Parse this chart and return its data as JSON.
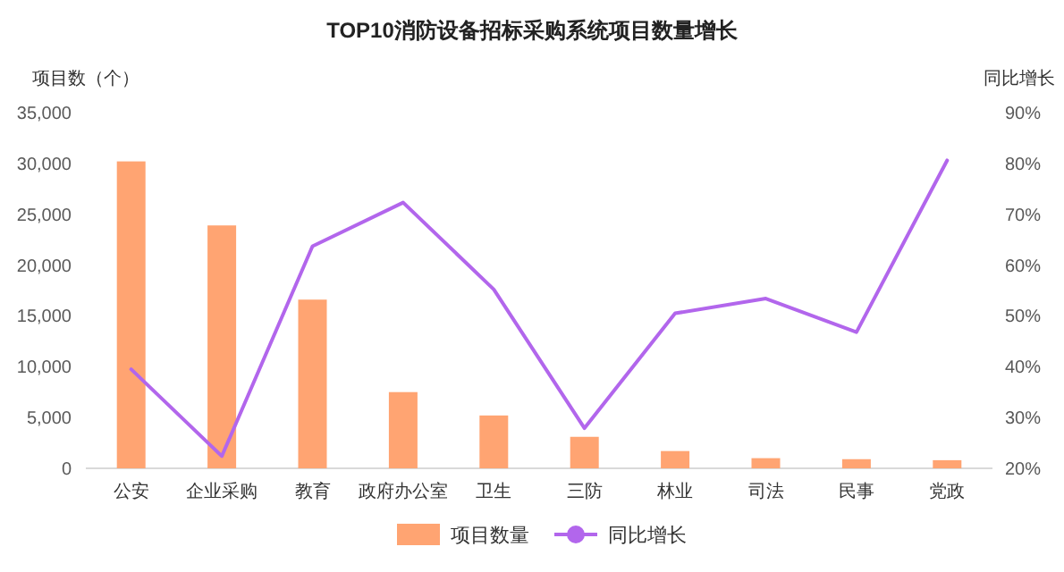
{
  "chart_data": {
    "type": "bar",
    "title": "TOP10消防设备招标采购系统项目数量增长",
    "ylabel": "项目数（个）",
    "y2label": "同比增长",
    "categories": [
      "公安",
      "企业采购",
      "教育",
      "政府办公室",
      "卫生",
      "三防",
      "林业",
      "司法",
      "民事",
      "党政"
    ],
    "series": [
      {
        "name": "项目数量",
        "color": "#ffa472",
        "values": [
          30200,
          23900,
          16600,
          7500,
          5200,
          3100,
          1700,
          1000,
          900,
          800
        ]
      },
      {
        "name": "同比增长",
        "type": "line",
        "axis": "y2",
        "color": "#b266ec",
        "values": [
          39.5,
          22.4,
          63.7,
          72.3,
          55.2,
          27.9,
          50.5,
          53.4,
          46.8,
          80.6
        ]
      }
    ],
    "ylim": [
      0,
      35000
    ],
    "yticks": [
      {
        "value": 0,
        "label": "0"
      },
      {
        "value": 5000,
        "label": "5,000"
      },
      {
        "value": 10000,
        "label": "10,000"
      },
      {
        "value": 15000,
        "label": "15,000"
      },
      {
        "value": 20000,
        "label": "20,000"
      },
      {
        "value": 25000,
        "label": "25,000"
      },
      {
        "value": 30000,
        "label": "30,000"
      },
      {
        "value": 35000,
        "label": "35,000"
      }
    ],
    "y2lim": [
      20,
      90
    ],
    "y2ticks": [
      {
        "value": 20,
        "label": "20%"
      },
      {
        "value": 30,
        "label": "30%"
      },
      {
        "value": 40,
        "label": "40%"
      },
      {
        "value": 50,
        "label": "50%"
      },
      {
        "value": 60,
        "label": "60%"
      },
      {
        "value": 70,
        "label": "70%"
      },
      {
        "value": 80,
        "label": "80%"
      },
      {
        "value": 90,
        "label": "90%"
      }
    ],
    "grid": false,
    "legend": "bottom"
  }
}
